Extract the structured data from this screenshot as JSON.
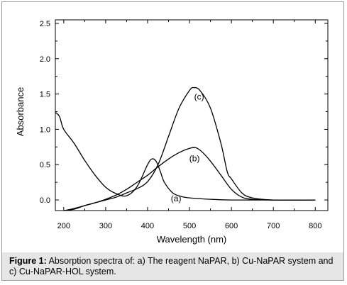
{
  "chart_data": {
    "type": "line",
    "xlabel": "Wavelength (nm)",
    "ylabel": "Absorbance",
    "xlim": [
      180,
      830
    ],
    "ylim": [
      -0.15,
      2.55
    ],
    "xticks": [
      200,
      300,
      400,
      500,
      600,
      700,
      800
    ],
    "yticks": [
      0.0,
      0.5,
      1.0,
      1.5,
      2.0,
      2.5
    ],
    "ytick_labels": [
      "0.0",
      "0.5",
      "1.0",
      "1.5",
      "2.0",
      "2.5"
    ],
    "grid": false,
    "series": [
      {
        "name": "(a)",
        "label_at": [
          468,
          -0.02
        ],
        "x": [
          180,
          190,
          200,
          225,
          250,
          275,
          300,
          325,
          350,
          375,
          400,
          410,
          420,
          430,
          440,
          460,
          480,
          500,
          550,
          600,
          700,
          800
        ],
        "y": [
          1.24,
          1.18,
          1.0,
          0.8,
          0.56,
          0.35,
          0.18,
          0.09,
          0.06,
          0.19,
          0.5,
          0.58,
          0.55,
          0.41,
          0.25,
          0.1,
          0.05,
          0.03,
          0.01,
          0.0,
          0.0,
          0.0
        ]
      },
      {
        "name": "(b)",
        "label_at": [
          512,
          0.55
        ],
        "x": [
          200,
          210,
          225,
          250,
          275,
          300,
          325,
          350,
          375,
          400,
          425,
          450,
          475,
          500,
          515,
          530,
          550,
          575,
          600,
          625,
          650,
          700,
          800
        ],
        "y": [
          -0.15,
          -0.14,
          -0.12,
          -0.08,
          -0.04,
          0.01,
          0.07,
          0.15,
          0.25,
          0.35,
          0.47,
          0.58,
          0.67,
          0.73,
          0.74,
          0.68,
          0.55,
          0.35,
          0.15,
          0.04,
          0.01,
          0.0,
          0.0
        ]
      },
      {
        "name": "(c)",
        "label_at": [
          523,
          1.42
        ],
        "x": [
          200,
          225,
          250,
          275,
          300,
          325,
          350,
          375,
          400,
          425,
          450,
          475,
          500,
          510,
          525,
          550,
          575,
          590,
          600,
          625,
          650,
          700,
          800
        ],
        "y": [
          -0.15,
          -0.13,
          -0.08,
          -0.04,
          0.0,
          0.04,
          0.1,
          0.16,
          0.26,
          0.5,
          0.9,
          1.3,
          1.55,
          1.59,
          1.55,
          1.3,
          0.8,
          0.4,
          0.3,
          0.1,
          0.03,
          0.0,
          0.0
        ]
      }
    ]
  },
  "caption": {
    "label": "Figure 1:",
    "text": " Absorption spectra of: a) The reagent NaPAR, b) Cu-NaPAR system and c) Cu-NaPAR-HOL system."
  }
}
